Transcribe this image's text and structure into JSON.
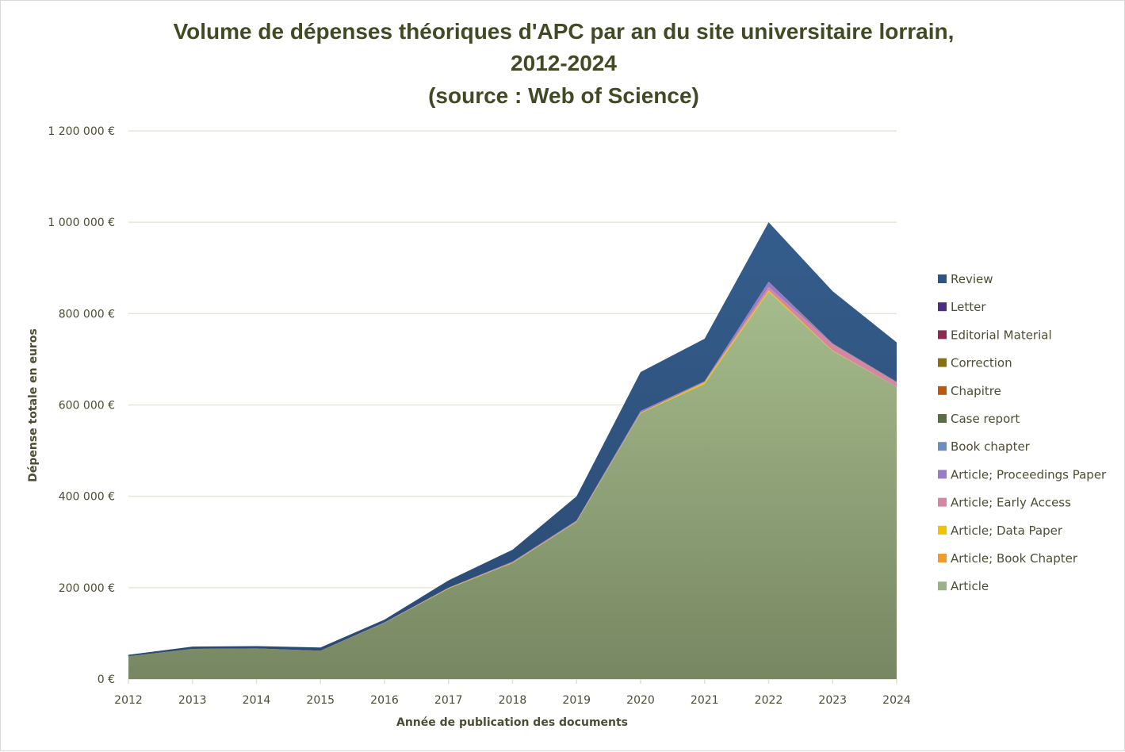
{
  "chart_data": {
    "type": "area",
    "stacked": true,
    "title": [
      "Volume de dépenses théoriques d'APC par an du site universitaire lorrain,",
      "2012-2024",
      "(source : Web of Science)"
    ],
    "xlabel": "Année de publication des documents",
    "ylabel": "Dépense totale en euros",
    "ylim": [
      0,
      1200000
    ],
    "yticks": [
      0,
      200000,
      400000,
      600000,
      800000,
      1000000,
      1200000
    ],
    "ytick_labels": [
      "0 €",
      "200 000 €",
      "400 000 €",
      "600 000 €",
      "800 000 €",
      "1 000 000 €",
      "1 200 000 €"
    ],
    "categories": [
      "2012",
      "2013",
      "2014",
      "2015",
      "2016",
      "2017",
      "2018",
      "2019",
      "2020",
      "2021",
      "2022",
      "2023",
      "2024"
    ],
    "grid": true,
    "legend_position": "right",
    "series": [
      {
        "name": "Article",
        "color": "#9bb384",
        "values": [
          50000,
          66000,
          67000,
          62000,
          123000,
          198000,
          254000,
          344000,
          582000,
          646000,
          848000,
          718000,
          640000
        ]
      },
      {
        "name": "Article; Book Chapter",
        "color": "#f39a2c",
        "values": [
          0,
          0,
          0,
          0,
          0,
          0,
          0,
          0,
          0,
          0,
          0,
          0,
          0
        ]
      },
      {
        "name": "Article; Data Paper",
        "color": "#f2c200",
        "values": [
          0,
          0,
          0,
          0,
          0,
          1000,
          1000,
          1000,
          1000,
          4000,
          3000,
          1000,
          0
        ]
      },
      {
        "name": "Article; Early Access",
        "color": "#d486a2",
        "values": [
          0,
          0,
          0,
          0,
          0,
          0,
          0,
          0,
          0,
          0,
          7000,
          14000,
          9000
        ]
      },
      {
        "name": "Article; Proceedings Paper",
        "color": "#9a7cc4",
        "values": [
          0,
          0,
          0,
          0,
          1000,
          1000,
          2000,
          2000,
          4000,
          2000,
          12000,
          1000,
          1000
        ]
      },
      {
        "name": "Book chapter",
        "color": "#6a8fc0",
        "values": [
          0,
          0,
          0,
          0,
          0,
          0,
          0,
          0,
          0,
          0,
          0,
          0,
          0
        ]
      },
      {
        "name": "Case report",
        "color": "#5a6e45",
        "values": [
          0,
          0,
          0,
          0,
          0,
          0,
          0,
          0,
          0,
          0,
          0,
          1000,
          1000
        ]
      },
      {
        "name": "Chapitre",
        "color": "#b85a10",
        "values": [
          0,
          0,
          0,
          0,
          0,
          0,
          0,
          0,
          0,
          0,
          0,
          0,
          0
        ]
      },
      {
        "name": "Correction",
        "color": "#8a6e10",
        "values": [
          0,
          0,
          0,
          0,
          0,
          0,
          0,
          0,
          0,
          0,
          0,
          0,
          0
        ]
      },
      {
        "name": "Editorial Material",
        "color": "#8e2a52",
        "values": [
          0,
          0,
          0,
          0,
          0,
          0,
          0,
          0,
          0,
          0,
          0,
          0,
          0
        ]
      },
      {
        "name": "Letter",
        "color": "#4e2e82",
        "values": [
          0,
          0,
          0,
          0,
          0,
          0,
          0,
          0,
          0,
          0,
          0,
          0,
          0
        ]
      },
      {
        "name": "Review",
        "color": "#2f5583",
        "values": [
          3000,
          5000,
          5000,
          7000,
          6000,
          16000,
          26000,
          53000,
          85000,
          93000,
          130000,
          114000,
          86000
        ]
      }
    ]
  }
}
